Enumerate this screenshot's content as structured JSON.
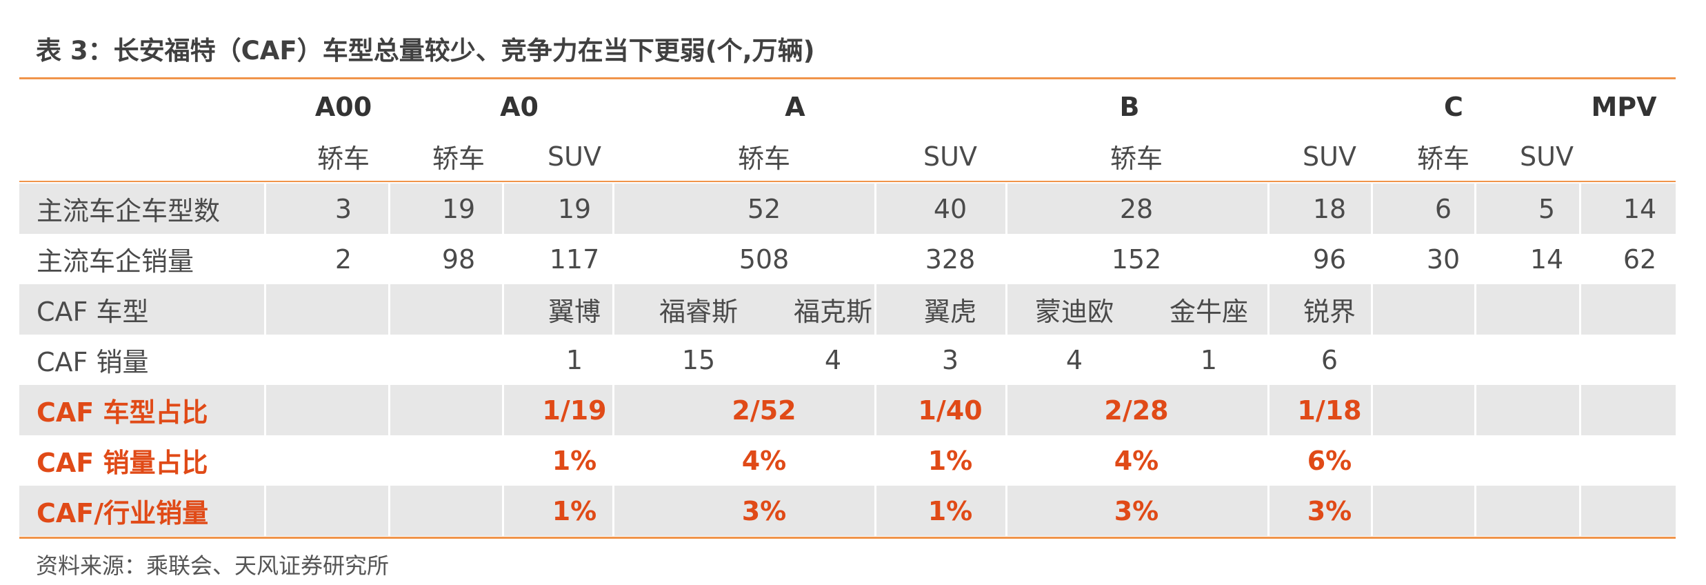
{
  "title": "表 3：长安福特（CAF）车型总量较少、竞争力在当下更弱(个,万辆)",
  "header": {
    "groups": [
      "A00",
      "A0",
      "A",
      "B",
      "C",
      "MPV"
    ],
    "subs": [
      "轿车",
      "轿车",
      "SUV",
      "轿车",
      "SUV",
      "轿车",
      "SUV",
      "轿车",
      "SUV"
    ]
  },
  "rows": [
    {
      "label": "主流车企车型数",
      "values": [
        "3",
        "19",
        "19",
        "52",
        "40",
        "28",
        "18",
        "6",
        "5",
        "14"
      ]
    },
    {
      "label": "主流车企销量",
      "values": [
        "2",
        "98",
        "117",
        "508",
        "328",
        "152",
        "96",
        "30",
        "14",
        "62"
      ]
    },
    {
      "label": "CAF 车型",
      "values": [
        "翼博",
        "福睿斯",
        "福克斯",
        "翼虎",
        "蒙迪欧",
        "金牛座",
        "锐界"
      ]
    },
    {
      "label": "CAF 销量",
      "values": [
        "1",
        "15",
        "4",
        "3",
        "4",
        "1",
        "6"
      ]
    },
    {
      "label": "CAF 车型占比",
      "values": [
        "1/19",
        "2/52",
        "1/40",
        "2/28",
        "1/18"
      ]
    },
    {
      "label": "CAF 销量占比",
      "values": [
        "1%",
        "4%",
        "1%",
        "4%",
        "6%"
      ]
    },
    {
      "label": "CAF/行业销量",
      "values": [
        "1%",
        "3%",
        "1%",
        "3%",
        "3%"
      ]
    }
  ],
  "source": "资料来源：乘联会、天风证券研究所",
  "colors": {
    "accent_line": "#f0944a",
    "highlight_text": "#e04a17",
    "row_shade": "#e7e7e7"
  }
}
